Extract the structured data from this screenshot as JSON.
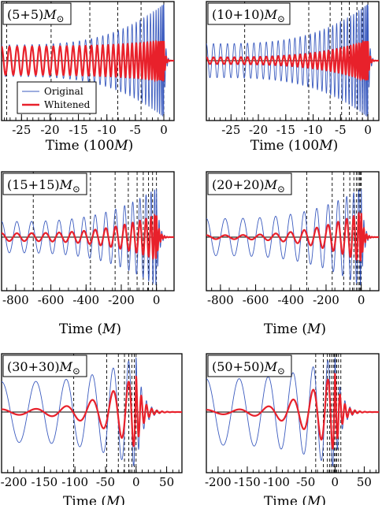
{
  "chart_data": [
    {
      "type": "line",
      "label": "(5+5)M⊙",
      "mass_label": {
        "prefix": "(5+5)",
        "symbol": "M",
        "sub": "⊙"
      },
      "xlabel": {
        "prefix": "Time (100",
        "italic": "M",
        "suffix": ")"
      },
      "xlim": [
        -28.5,
        1.8
      ],
      "xticks": [
        -25,
        -20,
        -15,
        -10,
        -5,
        0
      ],
      "xtick_labels": [
        "-25",
        "-20",
        "-15",
        "-10",
        "-5",
        "0"
      ],
      "minor_step": 1,
      "legend": {
        "items": [
          "Original",
          "Whitened"
        ],
        "position": "left"
      },
      "vlines": [
        -27.6,
        -19.8,
        -13.0,
        -8.1,
        -4.0,
        0.0
      ],
      "series": [
        {
          "name": "Original",
          "color": "#3b5bbf",
          "amplitude_start": 0.28,
          "amplitude_peak": 1.0,
          "cycles": 33,
          "ringdown_cycles": 2
        },
        {
          "name": "Whitened",
          "color": "#e8212b",
          "amplitude_start": 0.25,
          "amplitude_peak": 0.35,
          "cycles": 33,
          "ringdown_cycles": 2
        }
      ]
    },
    {
      "type": "line",
      "label": "(10+10)M⊙",
      "mass_label": {
        "prefix": "(10+10)",
        "symbol": "M",
        "sub": "⊙"
      },
      "xlabel": {
        "prefix": "Time (100",
        "italic": "M",
        "suffix": ")"
      },
      "xlim": [
        -29.5,
        2.0
      ],
      "xticks": [
        -25,
        -20,
        -15,
        -10,
        -5,
        0
      ],
      "xtick_labels": [
        "-25",
        "-20",
        "-15",
        "-10",
        "-5",
        "0"
      ],
      "minor_step": 1,
      "vlines": [
        -22.5,
        -10.8,
        -6.9,
        -4.8,
        -3.4,
        -2.0,
        -1.0,
        0.0
      ],
      "series": [
        {
          "name": "Original",
          "color": "#3b5bbf",
          "amplitude_start": 0.3,
          "amplitude_peak": 1.0,
          "cycles": 36,
          "ringdown_cycles": 2
        },
        {
          "name": "Whitened",
          "color": "#e8212b",
          "amplitude_start": 0.06,
          "amplitude_peak": 0.35,
          "cycles": 36,
          "ringdown_cycles": 2
        }
      ]
    },
    {
      "type": "line",
      "label": "(15+15)M⊙",
      "mass_label": {
        "prefix": "(15+15)",
        "symbol": "M",
        "sub": "⊙"
      },
      "xlabel": {
        "prefix": "Time (",
        "italic": "M",
        "suffix": ")"
      },
      "xlim": [
        -880,
        100
      ],
      "xticks": [
        -800,
        -600,
        -400,
        -200,
        0
      ],
      "xtick_labels": [
        "-800",
        "-600",
        "-400",
        "-200",
        "0"
      ],
      "minor_step": 50,
      "vlines": [
        -700,
        -375,
        -235,
        -160,
        -110,
        -75,
        -45,
        -22,
        0
      ],
      "series": [
        {
          "name": "Original",
          "color": "#3b5bbf",
          "amplitude_start": 0.32,
          "amplitude_peak": 1.0,
          "cycles": 16,
          "ringdown_cycles": 3
        },
        {
          "name": "Whitened",
          "color": "#e8212b",
          "amplitude_start": 0.08,
          "amplitude_peak": 0.45,
          "cycles": 16,
          "ringdown_cycles": 3
        }
      ]
    },
    {
      "type": "line",
      "label": "(20+20)M⊙",
      "mass_label": {
        "prefix": "(20+20)",
        "symbol": "M",
        "sub": "⊙"
      },
      "xlabel": {
        "prefix": "Time (",
        "italic": "M",
        "suffix": ")"
      },
      "xlim": [
        -880,
        100
      ],
      "xticks": [
        -800,
        -600,
        -400,
        -200,
        0
      ],
      "xtick_labels": [
        "-800",
        "-600",
        "-400",
        "-200",
        "0"
      ],
      "minor_step": 50,
      "vlines": [
        -310,
        -165,
        -100,
        -65,
        -42,
        -28,
        -18,
        -10,
        -4,
        0
      ],
      "series": [
        {
          "name": "Original",
          "color": "#3b5bbf",
          "amplitude_start": 0.38,
          "amplitude_peak": 1.0,
          "cycles": 13,
          "ringdown_cycles": 3
        },
        {
          "name": "Whitened",
          "color": "#e8212b",
          "amplitude_start": 0.04,
          "amplitude_peak": 0.5,
          "cycles": 13,
          "ringdown_cycles": 3
        }
      ]
    },
    {
      "type": "line",
      "label": "(30+30)M⊙",
      "mass_label": {
        "prefix": "(30+30)",
        "symbol": "M",
        "sub": "⊙"
      },
      "xlabel": {
        "prefix": "Time (",
        "italic": "M",
        "suffix": ")"
      },
      "xlim": [
        -220,
        75
      ],
      "xticks": [
        -200,
        -150,
        -100,
        -50,
        0,
        50
      ],
      "xtick_labels": [
        "-200",
        "-150",
        "-100",
        "-50",
        "0",
        "50"
      ],
      "minor_step": 10,
      "vlines": [
        -102,
        -48,
        -29,
        -19,
        -12,
        -7,
        -3,
        0
      ],
      "series": [
        {
          "name": "Original",
          "color": "#3b5bbf",
          "amplitude_start": 0.55,
          "amplitude_peak": 1.0,
          "cycles": 6,
          "ringdown_cycles": 4
        },
        {
          "name": "Whitened",
          "color": "#e8212b",
          "amplitude_start": 0.05,
          "amplitude_peak": 0.65,
          "cycles": 6,
          "ringdown_cycles": 4
        }
      ]
    },
    {
      "type": "line",
      "label": "(50+50)M⊙",
      "mass_label": {
        "prefix": "(50+50)",
        "symbol": "M",
        "sub": "⊙"
      },
      "xlabel": {
        "prefix": "Time (",
        "italic": "M",
        "suffix": ")"
      },
      "xlim": [
        -220,
        75
      ],
      "xticks": [
        -200,
        -150,
        -100,
        -50,
        0,
        50
      ],
      "xtick_labels": [
        "-200",
        "-150",
        "-100",
        "-50",
        "0",
        "50"
      ],
      "minor_step": 10,
      "vlines": [
        -33,
        -20,
        -13,
        -9,
        -6,
        -3,
        -1,
        1,
        3,
        6,
        10
      ],
      "series": [
        {
          "name": "Original",
          "color": "#3b5bbf",
          "amplitude_start": 0.6,
          "amplitude_peak": 1.0,
          "cycles": 6,
          "ringdown_cycles": 4
        },
        {
          "name": "Whitened",
          "color": "#e8212b",
          "amplitude_start": 0.04,
          "amplitude_peak": 0.7,
          "cycles": 6,
          "ringdown_cycles": 4
        }
      ]
    }
  ]
}
